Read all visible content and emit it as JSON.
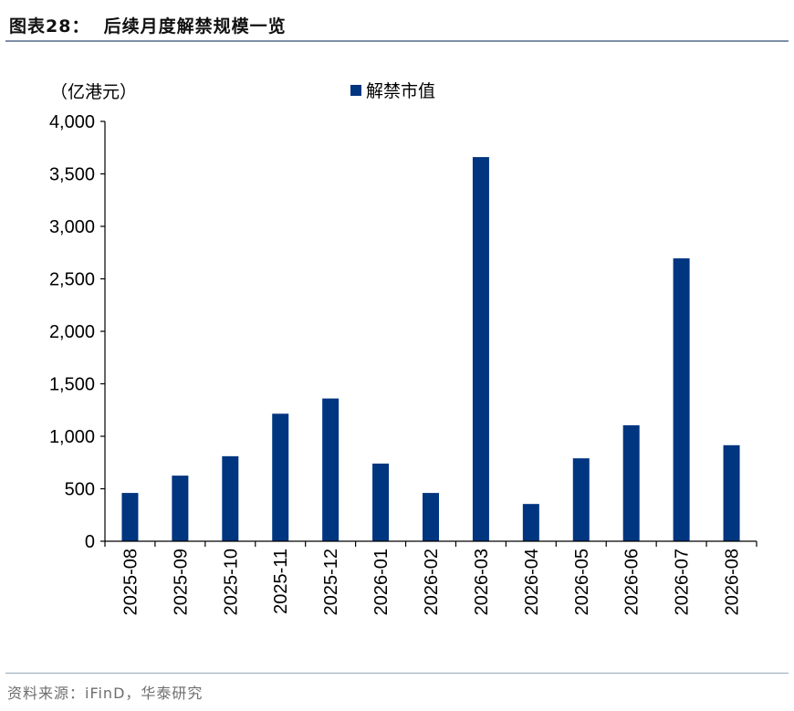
{
  "header": {
    "title": "图表28：  后续月度解禁规模一览"
  },
  "source": "资料来源：iFinD，华泰研究",
  "chart_data": {
    "type": "bar",
    "title": "",
    "unit_label": "（亿港元）",
    "xlabel": "",
    "ylabel": "",
    "ylim": [
      0,
      4000
    ],
    "yticks": [
      0,
      500,
      1000,
      1500,
      2000,
      2500,
      3000,
      3500,
      4000
    ],
    "ytick_labels": [
      "0",
      "500",
      "1,000",
      "1,500",
      "2,000",
      "2,500",
      "3,000",
      "3,500",
      "4,000"
    ],
    "categories": [
      "2025-08",
      "2025-09",
      "2025-10",
      "2025-11",
      "2025-12",
      "2026-01",
      "2026-02",
      "2026-03",
      "2026-04",
      "2026-05",
      "2026-06",
      "2026-07",
      "2026-08"
    ],
    "series": [
      {
        "name": "解禁市值",
        "color": "#003580",
        "values": [
          460,
          625,
          810,
          1215,
          1360,
          740,
          460,
          3660,
          355,
          790,
          1105,
          2695,
          915
        ]
      }
    ],
    "grid": false,
    "legend_position": "top-center"
  }
}
